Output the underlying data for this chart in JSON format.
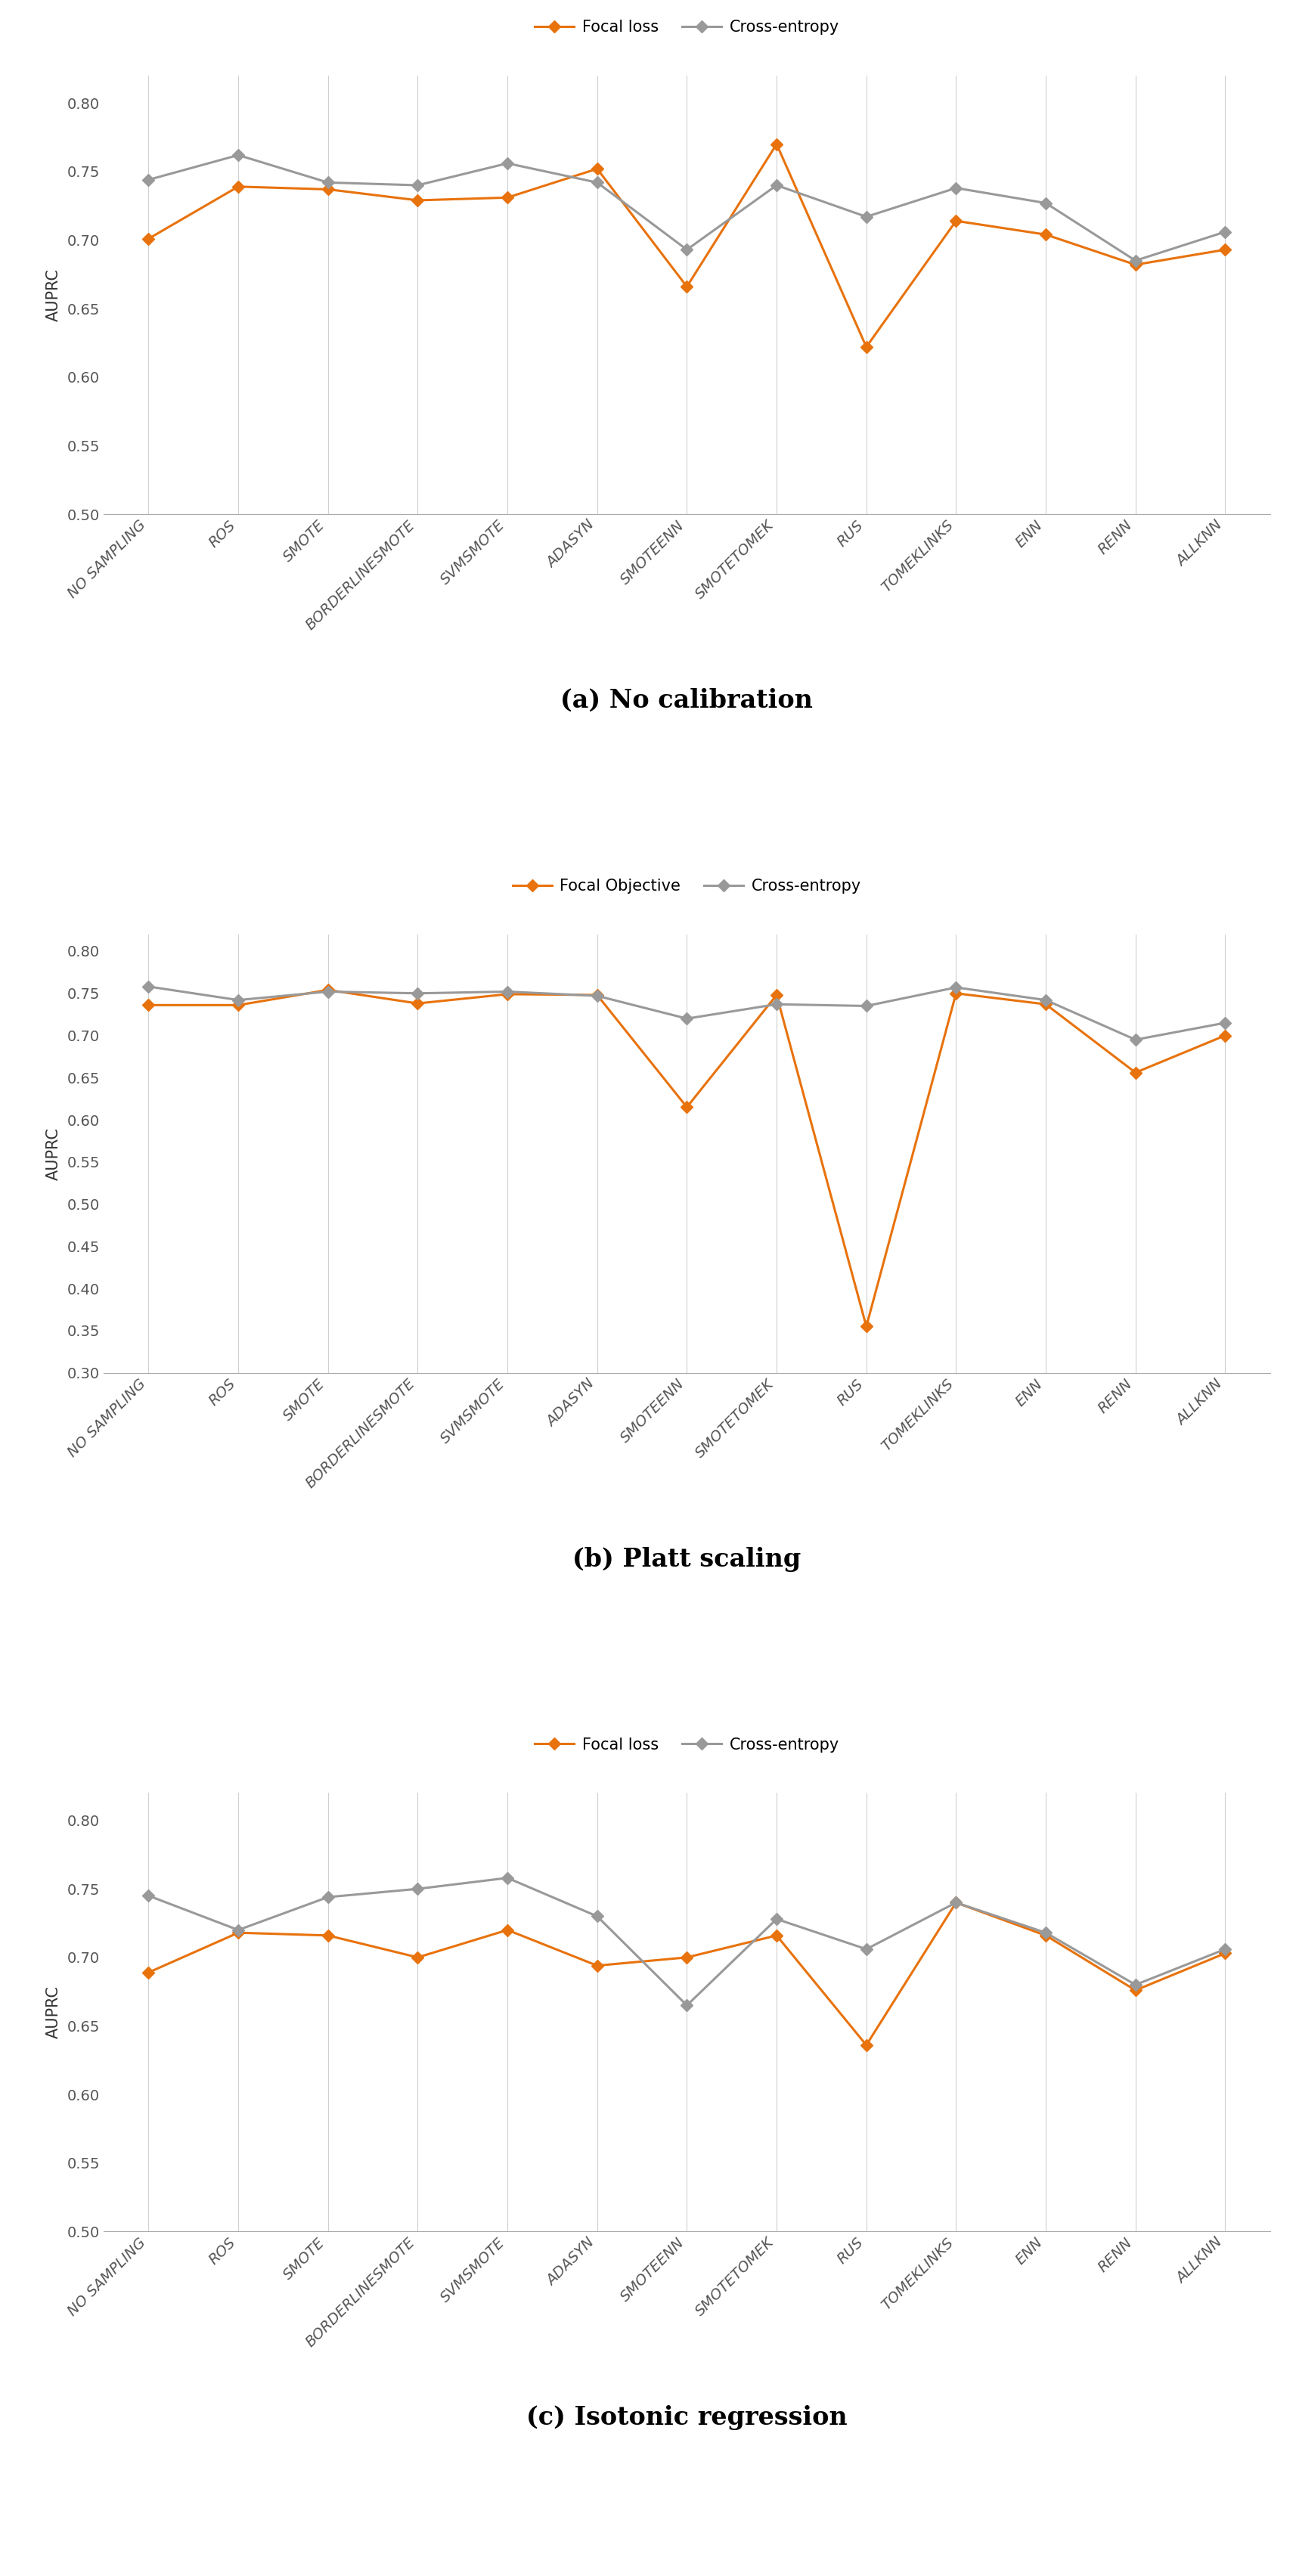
{
  "categories": [
    "NO SAMPLING",
    "ROS",
    "SMOTE",
    "BORDERLINESMOTE",
    "SVMSMOTE",
    "ADASYN",
    "SMOTEENN",
    "SMOTETOMEK",
    "RUS",
    "TOMEKLINKS",
    "ENN",
    "RENN",
    "ALLKNN"
  ],
  "charts": [
    {
      "title": "(a) No calibration",
      "legend_focal": "Focal loss",
      "legend_ce": "Cross-entropy",
      "focal_values": [
        0.701,
        0.739,
        0.737,
        0.729,
        0.731,
        0.752,
        0.666,
        0.77,
        0.622,
        0.714,
        0.704,
        0.682,
        0.693
      ],
      "ce_values": [
        0.744,
        0.762,
        0.742,
        0.74,
        0.756,
        0.742,
        0.693,
        0.74,
        0.717,
        0.738,
        0.727,
        0.685,
        0.706
      ],
      "ylim": [
        0.5,
        0.82
      ],
      "yticks": [
        0.5,
        0.55,
        0.6,
        0.65,
        0.7,
        0.75,
        0.8
      ]
    },
    {
      "title": "(b) Platt scaling",
      "legend_focal": "Focal Objective",
      "legend_ce": "Cross-entropy",
      "focal_values": [
        0.736,
        0.736,
        0.754,
        0.738,
        0.749,
        0.748,
        0.615,
        0.748,
        0.355,
        0.75,
        0.737,
        0.656,
        0.7
      ],
      "ce_values": [
        0.758,
        0.742,
        0.752,
        0.75,
        0.752,
        0.747,
        0.72,
        0.737,
        0.735,
        0.757,
        0.742,
        0.695,
        0.715
      ],
      "ylim": [
        0.3,
        0.82
      ],
      "yticks": [
        0.3,
        0.35,
        0.4,
        0.45,
        0.5,
        0.55,
        0.6,
        0.65,
        0.7,
        0.75,
        0.8
      ]
    },
    {
      "title": "(c) Isotonic regression",
      "legend_focal": "Focal loss",
      "legend_ce": "Cross-entropy",
      "focal_values": [
        0.689,
        0.718,
        0.716,
        0.7,
        0.72,
        0.694,
        0.7,
        0.716,
        0.636,
        0.74,
        0.716,
        0.676,
        0.703
      ],
      "ce_values": [
        0.745,
        0.72,
        0.744,
        0.75,
        0.758,
        0.73,
        0.665,
        0.728,
        0.706,
        0.74,
        0.718,
        0.68,
        0.706
      ],
      "ylim": [
        0.5,
        0.82
      ],
      "yticks": [
        0.5,
        0.55,
        0.6,
        0.65,
        0.7,
        0.75,
        0.8
      ]
    }
  ],
  "focal_color": "#E8720C",
  "ce_color": "#999999",
  "linewidth": 2.2,
  "markersize": 8,
  "ylabel": "AUPRC",
  "background_color": "#ffffff",
  "grid_color": "#d0d0d0",
  "title_fontsize": 24,
  "tick_fontsize": 14,
  "legend_fontsize": 15,
  "ylabel_fontsize": 15,
  "ytick_fontsize": 14
}
